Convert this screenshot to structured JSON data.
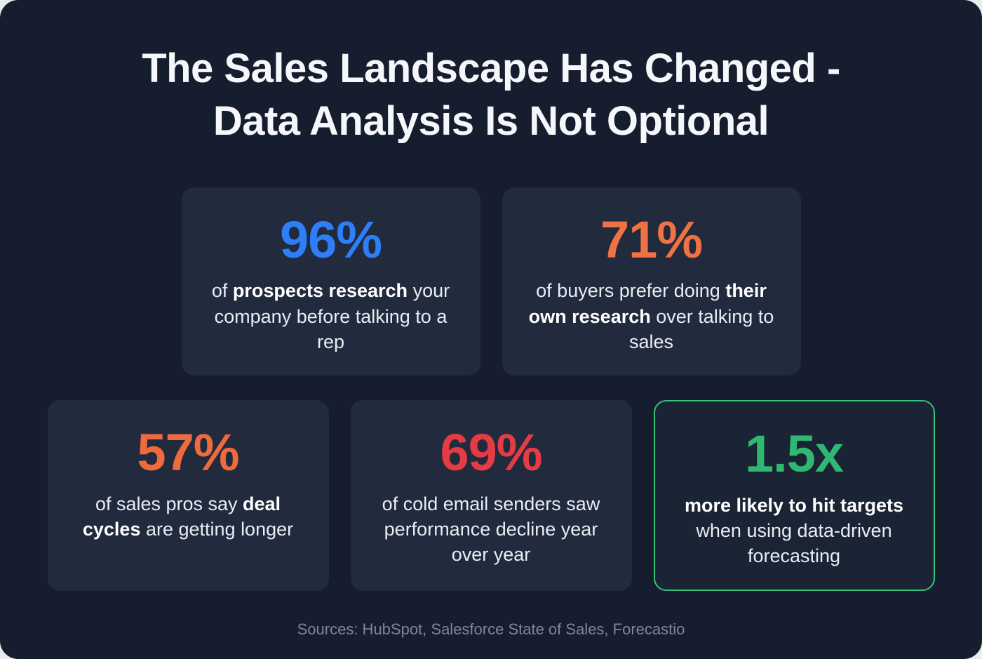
{
  "infographic": {
    "title_line1": "The Sales Landscape Has Changed -",
    "title_line2": "Data Analysis Is Not Optional",
    "source_text": "Sources: HubSpot, Salesforce State of Sales, Forecastio"
  },
  "colors": {
    "background": "#161d2e",
    "card_background": "#212b3d",
    "highlight_card_background": "#1a2434",
    "highlight_card_border": "#34c47c",
    "blue": "#2d7ef7",
    "orange": "#ef7342",
    "red": "#e43b44",
    "green": "#2fb871",
    "text_primary": "#f5f7fb",
    "text_muted": "#7e8798"
  },
  "stats": [
    {
      "value": "96%",
      "color": "#2d7ef7",
      "segments": [
        {
          "text": "of ",
          "bold": false
        },
        {
          "text": "prospects research",
          "bold": true
        },
        {
          "text": " your company before talking to a rep",
          "bold": false
        }
      ]
    },
    {
      "value": "71%",
      "color": "#ef7342",
      "segments": [
        {
          "text": "of buyers prefer doing ",
          "bold": false
        },
        {
          "text": "their own research",
          "bold": true
        },
        {
          "text": " over talking to sales",
          "bold": false
        }
      ]
    },
    {
      "value": "57%",
      "color": "#ef6a3d",
      "segments": [
        {
          "text": "of sales pros say ",
          "bold": false
        },
        {
          "text": "deal cycles",
          "bold": true
        },
        {
          "text": " are getting longer",
          "bold": false
        }
      ]
    },
    {
      "value": "69%",
      "color": "#e43b44",
      "segments": [
        {
          "text": "of cold email senders saw performance decline year over year",
          "bold": false
        }
      ]
    },
    {
      "value": "1.5x",
      "color": "#2fb871",
      "highlighted": true,
      "segments": [
        {
          "text": "more likely to hit targets",
          "bold": true
        },
        {
          "text": " when using data-driven forecasting",
          "bold": false
        }
      ]
    }
  ],
  "chart_data": {
    "type": "table",
    "title": "The Sales Landscape Has Changed - Data Analysis Is Not Optional",
    "columns": [
      "statistic",
      "description"
    ],
    "rows": [
      [
        "96%",
        "of prospects research your company before talking to a rep"
      ],
      [
        "71%",
        "of buyers prefer doing their own research over talking to sales"
      ],
      [
        "57%",
        "of sales pros say deal cycles are getting longer"
      ],
      [
        "69%",
        "of cold email senders saw performance decline year over year"
      ],
      [
        "1.5x",
        "more likely to hit targets when using data-driven forecasting"
      ]
    ],
    "source": "Sources: HubSpot, Salesforce State of Sales, Forecastio"
  }
}
